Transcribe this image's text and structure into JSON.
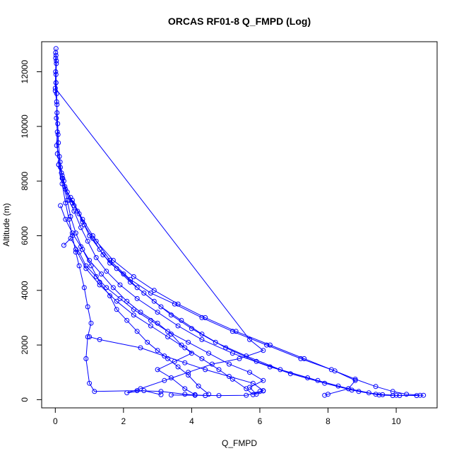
{
  "chart_data": {
    "type": "line",
    "title": "ORCAS RF01-8 Q_FMPD (Log)",
    "xlabel": "Q_FMPD",
    "ylabel": "Altitude (m)",
    "xlim": [
      -0.4,
      11.2
    ],
    "ylim": [
      -300,
      13100
    ],
    "x_ticks": [
      0,
      2,
      4,
      6,
      8,
      10
    ],
    "x_tick_labels": [
      "0",
      "2",
      "4",
      "6",
      "8",
      "10"
    ],
    "y_ticks": [
      0,
      2000,
      4000,
      6000,
      8000,
      10000,
      12000
    ],
    "y_tick_labels": [
      "0",
      "2000",
      "4000",
      "6000",
      "8000",
      "10000",
      "12000"
    ],
    "grid": false,
    "legend": "none",
    "marker": "open-circle",
    "series_color": "#0000ff",
    "series": [
      {
        "points": [
          [
            0.02,
            12850
          ],
          [
            0.01,
            12700
          ],
          [
            0.03,
            12400
          ],
          [
            0.01,
            12000
          ],
          [
            0.02,
            11600
          ],
          [
            0.0,
            11300
          ],
          [
            0.05,
            10800
          ],
          [
            0.03,
            10300
          ],
          [
            0.06,
            9800
          ],
          [
            0.04,
            9300
          ],
          [
            0.12,
            8900
          ],
          [
            0.1,
            8600
          ],
          [
            0.18,
            8300
          ],
          [
            0.25,
            8000
          ],
          [
            0.3,
            7700
          ],
          [
            0.45,
            7400
          ],
          [
            0.55,
            7100
          ],
          [
            0.7,
            6800
          ],
          [
            0.85,
            6400
          ],
          [
            1.0,
            6000
          ],
          [
            1.3,
            5500
          ],
          [
            1.6,
            5000
          ],
          [
            2.0,
            4600
          ],
          [
            2.4,
            4100
          ],
          [
            2.9,
            3600
          ],
          [
            3.4,
            3100
          ],
          [
            4.0,
            2600
          ],
          [
            4.7,
            2100
          ],
          [
            5.6,
            1600
          ],
          [
            6.6,
            1100
          ],
          [
            7.7,
            700
          ],
          [
            8.6,
            400
          ],
          [
            9.2,
            250
          ],
          [
            9.6,
            180
          ],
          [
            10.1,
            150
          ],
          [
            10.7,
            160
          ]
        ]
      },
      {
        "points": [
          [
            0.01,
            12500
          ],
          [
            0.02,
            11900
          ],
          [
            0.04,
            11200
          ],
          [
            0.05,
            10500
          ],
          [
            0.08,
            9700
          ],
          [
            0.06,
            9000
          ],
          [
            0.15,
            8500
          ],
          [
            0.22,
            8100
          ],
          [
            0.35,
            7600
          ],
          [
            0.5,
            7200
          ],
          [
            0.65,
            6900
          ],
          [
            0.8,
            6500
          ],
          [
            1.1,
            5900
          ],
          [
            1.4,
            5300
          ],
          [
            1.8,
            4800
          ],
          [
            2.2,
            4300
          ],
          [
            2.6,
            3900
          ],
          [
            3.1,
            3400
          ],
          [
            3.7,
            2900
          ],
          [
            4.3,
            2400
          ],
          [
            5.0,
            1900
          ],
          [
            5.9,
            1400
          ],
          [
            6.9,
            950
          ],
          [
            7.9,
            600
          ],
          [
            8.7,
            350
          ],
          [
            9.4,
            200
          ],
          [
            10.0,
            160
          ],
          [
            10.6,
            150
          ]
        ]
      },
      {
        "points": [
          [
            0.03,
            12300
          ],
          [
            0.02,
            11600
          ],
          [
            0.04,
            10900
          ],
          [
            0.07,
            10100
          ],
          [
            0.09,
            9400
          ],
          [
            0.14,
            8700
          ],
          [
            0.2,
            8200
          ],
          [
            0.28,
            7800
          ],
          [
            0.4,
            7300
          ],
          [
            0.55,
            6900
          ],
          [
            0.75,
            6300
          ],
          [
            0.95,
            5800
          ],
          [
            1.2,
            5200
          ],
          [
            1.5,
            4700
          ],
          [
            1.9,
            4200
          ],
          [
            2.4,
            3700
          ],
          [
            3.0,
            3200
          ],
          [
            3.6,
            2700
          ],
          [
            4.3,
            2200
          ],
          [
            5.2,
            1700
          ],
          [
            6.3,
            1200
          ],
          [
            7.4,
            800
          ],
          [
            8.3,
            500
          ],
          [
            8.9,
            300
          ],
          [
            9.5,
            170
          ],
          [
            9.9,
            150
          ]
        ]
      },
      {
        "points": [
          [
            0.02,
            12600
          ],
          [
            0.0,
            11400
          ],
          [
            5.7,
            2200
          ],
          [
            6.1,
            1800
          ],
          [
            5.4,
            1500
          ],
          [
            4.6,
            1300
          ],
          [
            3.9,
            1000
          ],
          [
            3.2,
            700
          ],
          [
            2.5,
            400
          ],
          [
            2.1,
            250
          ],
          [
            2.6,
            330
          ],
          [
            3.1,
            180
          ]
        ]
      },
      {
        "points": [
          [
            0.1,
            8600
          ],
          [
            0.2,
            7900
          ],
          [
            0.3,
            7200
          ],
          [
            0.4,
            6600
          ],
          [
            0.5,
            6000
          ],
          [
            0.6,
            5400
          ],
          [
            0.7,
            4900
          ],
          [
            0.85,
            4100
          ],
          [
            0.95,
            3400
          ],
          [
            1.05,
            2800
          ],
          [
            0.95,
            2300
          ],
          [
            0.9,
            1500
          ],
          [
            1.0,
            600
          ],
          [
            1.15,
            300
          ],
          [
            2.4,
            330
          ],
          [
            3.1,
            300
          ],
          [
            3.8,
            200
          ],
          [
            4.4,
            150
          ]
        ]
      },
      {
        "points": [
          [
            0.2,
            8100
          ],
          [
            0.35,
            7300
          ],
          [
            0.45,
            6700
          ],
          [
            0.6,
            6100
          ],
          [
            0.8,
            5500
          ],
          [
            1.05,
            4900
          ],
          [
            1.3,
            4300
          ],
          [
            1.6,
            3800
          ],
          [
            1.8,
            3300
          ],
          [
            2.1,
            2900
          ],
          [
            2.4,
            2500
          ],
          [
            2.7,
            2100
          ],
          [
            3.0,
            1800
          ],
          [
            3.3,
            1500
          ],
          [
            3.6,
            1200
          ],
          [
            3.9,
            900
          ],
          [
            4.2,
            500
          ],
          [
            4.5,
            200
          ]
        ]
      },
      {
        "points": [
          [
            0.15,
            7100
          ],
          [
            0.3,
            6600
          ],
          [
            0.5,
            6100
          ],
          [
            0.75,
            5600
          ],
          [
            1.0,
            5100
          ],
          [
            1.35,
            4600
          ],
          [
            1.7,
            4100
          ],
          [
            2.1,
            3600
          ],
          [
            2.5,
            3200
          ],
          [
            3.0,
            2800
          ],
          [
            3.4,
            2400
          ],
          [
            3.7,
            2000
          ],
          [
            4.0,
            1700
          ],
          [
            3.5,
            1400
          ],
          [
            3.0,
            1100
          ],
          [
            3.4,
            800
          ],
          [
            3.8,
            400
          ],
          [
            4.1,
            180
          ]
        ]
      },
      {
        "points": [
          [
            0.25,
            5650
          ],
          [
            0.45,
            5900
          ],
          [
            0.7,
            5400
          ],
          [
            0.9,
            4900
          ],
          [
            1.2,
            4500
          ],
          [
            1.5,
            4100
          ],
          [
            1.9,
            3700
          ],
          [
            2.3,
            3300
          ],
          [
            2.8,
            2900
          ],
          [
            3.3,
            2500
          ],
          [
            3.9,
            2100
          ],
          [
            4.5,
            1700
          ],
          [
            5.1,
            1300
          ],
          [
            5.7,
            1000
          ],
          [
            6.1,
            700
          ],
          [
            5.7,
            450
          ],
          [
            5.9,
            200
          ],
          [
            6.1,
            320
          ]
        ]
      },
      {
        "points": [
          [
            1.0,
            2300
          ],
          [
            1.3,
            2200
          ],
          [
            2.5,
            1900
          ],
          [
            3.2,
            1600
          ],
          [
            3.8,
            1350
          ],
          [
            4.4,
            1100
          ],
          [
            5.1,
            850
          ],
          [
            5.8,
            600
          ],
          [
            6.1,
            330
          ],
          [
            5.6,
            160
          ],
          [
            4.8,
            150
          ],
          [
            4.1,
            160
          ],
          [
            3.4,
            170
          ]
        ]
      },
      {
        "points": [
          [
            1.1,
            6000
          ],
          [
            1.6,
            5100
          ],
          [
            2.2,
            4400
          ],
          [
            2.8,
            3900
          ],
          [
            3.5,
            3500
          ],
          [
            4.3,
            3000
          ],
          [
            5.2,
            2500
          ],
          [
            6.2,
            2000
          ],
          [
            7.2,
            1500
          ],
          [
            8.1,
            1100
          ],
          [
            8.8,
            750
          ],
          [
            9.4,
            480
          ],
          [
            9.9,
            300
          ],
          [
            10.3,
            200
          ],
          [
            10.8,
            160
          ]
        ]
      },
      {
        "points": [
          [
            0.5,
            7300
          ],
          [
            0.8,
            6600
          ],
          [
            1.2,
            5800
          ],
          [
            1.7,
            5100
          ],
          [
            2.3,
            4500
          ],
          [
            2.9,
            4000
          ],
          [
            3.6,
            3500
          ],
          [
            4.4,
            3000
          ],
          [
            5.3,
            2500
          ],
          [
            6.3,
            2000
          ],
          [
            7.3,
            1500
          ],
          [
            8.2,
            1050
          ],
          [
            8.8,
            700
          ],
          [
            8.6,
            400
          ],
          [
            8.0,
            200
          ],
          [
            7.9,
            160
          ]
        ]
      },
      {
        "points": [
          [
            0.6,
            5500
          ],
          [
            0.9,
            4800
          ],
          [
            1.3,
            4200
          ],
          [
            1.8,
            3600
          ],
          [
            2.3,
            3100
          ],
          [
            2.8,
            2700
          ],
          [
            3.3,
            2300
          ],
          [
            3.8,
            1900
          ],
          [
            4.3,
            1500
          ],
          [
            4.8,
            1100
          ],
          [
            5.2,
            750
          ],
          [
            5.6,
            400
          ],
          [
            5.8,
            180
          ],
          [
            6.0,
            300
          ]
        ]
      }
    ]
  }
}
